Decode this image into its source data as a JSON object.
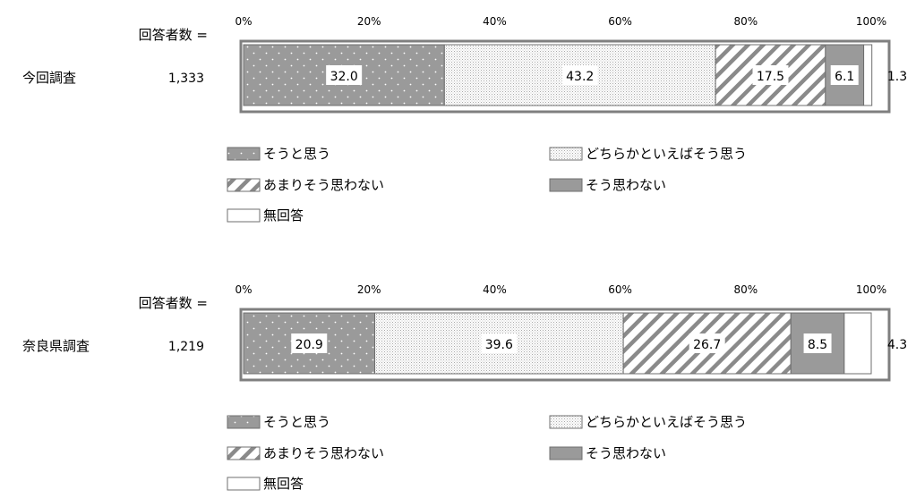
{
  "chart_data": [
    {
      "type": "bar",
      "orientation": "horizontal-stacked",
      "row_label": "今回調査",
      "count_header": "回答者数 =",
      "count": "1,333",
      "xlim": [
        0,
        100
      ],
      "tick_labels": [
        "0%",
        "20%",
        "40%",
        "60%",
        "80%",
        "100%"
      ],
      "categories": [
        "そうと思う",
        "どちらかといえばそう思う",
        "あまりそう思わない",
        "そう思わない",
        "無回答"
      ],
      "values": [
        32.0,
        43.2,
        17.5,
        6.1,
        1.3
      ],
      "value_labels": [
        "32.0",
        "43.2",
        "17.5",
        "6.1",
        "1.3"
      ],
      "legend_position": "bottom"
    },
    {
      "type": "bar",
      "orientation": "horizontal-stacked",
      "row_label": "奈良県調査",
      "count_header": "回答者数 =",
      "count": "1,219",
      "xlim": [
        0,
        100
      ],
      "tick_labels": [
        "0%",
        "20%",
        "40%",
        "60%",
        "80%",
        "100%"
      ],
      "categories": [
        "そうと思う",
        "どちらかといえばそう思う",
        "あまりそう思わない",
        "そう思わない",
        "無回答"
      ],
      "values": [
        20.9,
        39.6,
        26.7,
        8.5,
        4.3
      ],
      "value_labels": [
        "20.9",
        "39.6",
        "26.7",
        "8.5",
        "4.3"
      ],
      "legend_position": "bottom"
    }
  ],
  "styles": {
    "pattern_names": [
      "dots-on-gray",
      "fine-dots",
      "diagonal-hatch",
      "solid-gray",
      "white"
    ],
    "colors": {
      "dark_gray": "#9a9a9a",
      "light_dot": "#d6d6d6",
      "hatch": "#8a8a8a",
      "frame": "#7f7f7f",
      "white": "#ffffff"
    }
  }
}
